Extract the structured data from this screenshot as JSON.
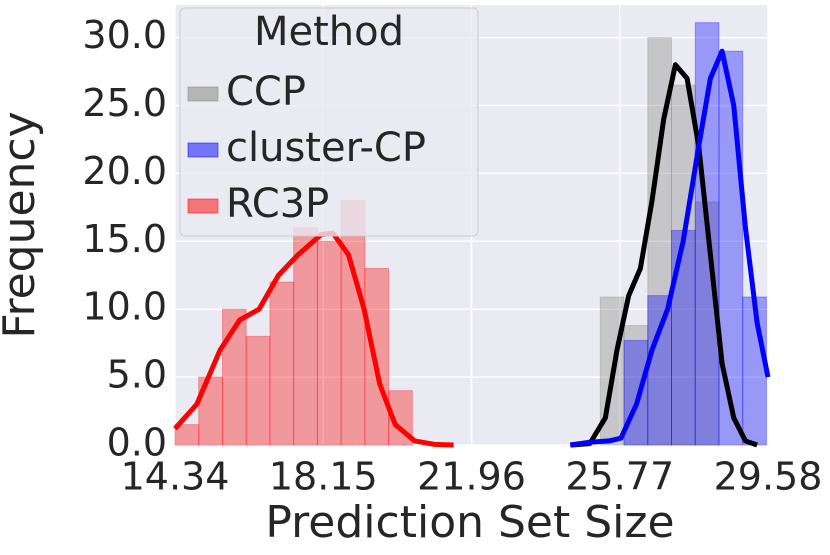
{
  "chart_data": {
    "type": "histogram",
    "xlabel": "Prediction Set Size",
    "ylabel": "Frequency",
    "xlim": [
      14.34,
      29.58
    ],
    "ylim": [
      0,
      32.4
    ],
    "xticks": [
      14.34,
      18.15,
      21.96,
      25.77,
      29.58
    ],
    "yticks": [
      {
        "value": 0,
        "label": "0.0"
      },
      {
        "value": 5,
        "label": "5.0"
      },
      {
        "value": 10,
        "label": "10.0"
      },
      {
        "value": 15,
        "label": "15.0"
      },
      {
        "value": 20,
        "label": "20.0"
      },
      {
        "value": 25,
        "label": "25.0"
      },
      {
        "value": 30,
        "label": "30.0"
      }
    ],
    "grid": true,
    "legend_title": "Method",
    "legend_position": "upper-left",
    "series": [
      {
        "name": "CCP",
        "color": "#808080",
        "line_color": "#000000",
        "bins": [
          25.27,
          25.88,
          26.49,
          27.1,
          27.71,
          28.32
        ],
        "values": [
          10.9,
          8.8,
          30,
          26.5,
          17.9
        ],
        "curve": {
          "x": [
            24.5,
            25.0,
            25.4,
            25.7,
            26.0,
            26.3,
            26.6,
            26.9,
            27.2,
            27.5,
            27.8,
            28.1,
            28.4,
            28.7,
            29.0,
            29.3
          ],
          "y": [
            0,
            0.1,
            2,
            7,
            11,
            13,
            18,
            24,
            28,
            27,
            22,
            14,
            6,
            2,
            0.3,
            0
          ]
        }
      },
      {
        "name": "cluster-CP",
        "color": "#0000ff",
        "line_color": "#0000ff",
        "bins": [
          25.88,
          26.49,
          27.1,
          27.71,
          28.32,
          28.93,
          29.54
        ],
        "values": [
          7.7,
          11,
          15.8,
          31.1,
          29,
          10.9
        ],
        "curve": {
          "x": [
            24.5,
            25.0,
            25.5,
            25.8,
            26.2,
            26.6,
            27.0,
            27.4,
            27.8,
            28.1,
            28.4,
            28.7,
            29.0,
            29.3,
            29.58
          ],
          "y": [
            0,
            0.2,
            0.3,
            0.5,
            3,
            7,
            10,
            15,
            22,
            27,
            29,
            25,
            16,
            9,
            5
          ]
        }
      },
      {
        "name": "RC3P",
        "color": "#ff0000",
        "line_color": "#ff0000",
        "bins": [
          14.34,
          14.95,
          15.56,
          16.17,
          16.78,
          17.39,
          18.0,
          18.61,
          19.22,
          19.83,
          20.44
        ],
        "values": [
          1.5,
          5,
          10,
          8,
          12,
          16,
          15,
          18,
          13,
          4
        ],
        "curve": {
          "x": [
            14.34,
            14.9,
            15.5,
            16.0,
            16.5,
            17.0,
            17.5,
            18.1,
            18.4,
            18.8,
            19.2,
            19.6,
            20.0,
            20.5,
            21.0,
            21.5
          ],
          "y": [
            1.2,
            3,
            7,
            9.2,
            10,
            12.5,
            14,
            15.5,
            15.6,
            14,
            10,
            4.5,
            1.5,
            0.3,
            0.05,
            0
          ]
        }
      }
    ]
  }
}
